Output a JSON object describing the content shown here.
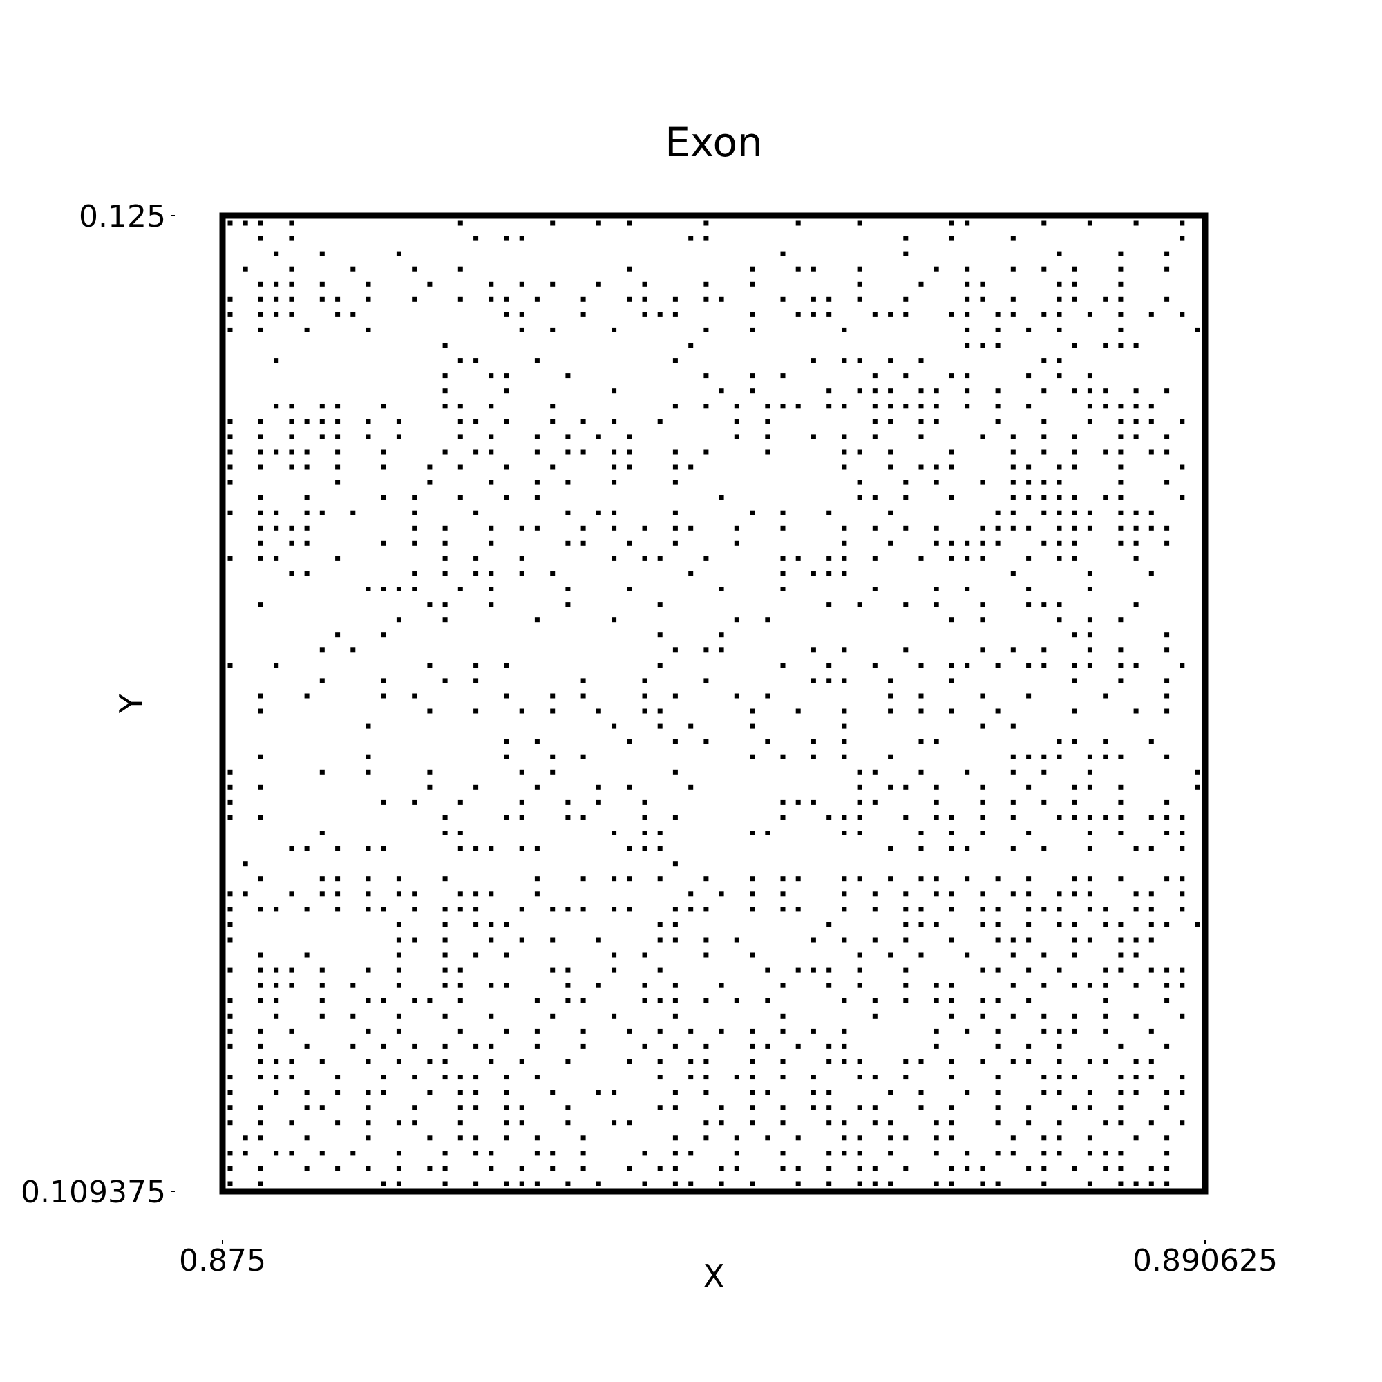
{
  "chart_data": {
    "type": "scatter",
    "title": "Exon",
    "xlabel": "X",
    "ylabel": "Y",
    "xlim": [
      0.875,
      0.890625
    ],
    "ylim": [
      0.109375,
      0.125
    ],
    "xticks": [
      {
        "value": 0.875,
        "label": "0.875"
      },
      {
        "value": 0.890625,
        "label": "0.890625"
      }
    ],
    "yticks": [
      {
        "value": 0.109375,
        "label": "0.109375"
      },
      {
        "value": 0.125,
        "label": "0.125"
      }
    ],
    "grid": false,
    "marker": "square",
    "point_color": "#000000",
    "frame_color": "#000000",
    "raster": {
      "columns": 64,
      "rows": 64,
      "row_order": "top-to-bottom",
      "cells": [
        "###.#..........#.....#..#.#....#.....#...#.....##....#..#..#..#",
        "..#.#...........#.##..........##............#..#...#..........#",
        "...#..#....#........................#.......#.........#...#..#.",
        ".#..#...#...#..#..........#.......#..##..#....#.#..#.#.#..#..#",
        "..###.#..#...#...#.#.#..#..#...#..#......#...#..##....##..#...",
        "#.###.##.#..#..#.##.#..#..##.#.##...#.##.#..#...##.#..##.##..#.",
        "#.###..##.........##...#...###....#..###..###..##.##.##.#.#.#.#",
        "#.#..#...#.........#.#...#.....#..#.....#.......#.#.#.#...#....#",
        "..............#...............#.................###....#.###...",
        "...#...........##...#........#........#.##.#.#.......##.........",
        "..............#..##...#........#..#.#.....#.#..##...#.#.#.......",
        "..............#...#......#......#.#....#.###.##.#.#..#.###.#.#..",
        "...##.##..#...##.#...#.......#.#.#.###.##.#####.#.#.#...#####",
        "#.#.####.#.#...##.#..#.#.#..#....#.#......##.##...#..#..#.###.#",
        "#.#.#.##.#.#...#.#..#.#.#.#......#.#..#.#.#..#...#.#.#.#..##.#",
        "#.####.#..#...#.##..#.##.##..#.#...#....##.#...#...#.#.#.##.##",
        "#.#.##.#..#..#.#..#..#...##..##.........#..#.###...##.##..#...#",
        "#......#.....#...#..#.#..#...#...........#..#.#..#.####...#..#",
        "..#..#....#.#..#..#.#...........#........##.#..#...#####.##...#",
        "#.##.##.#...#...#.....#.##...#....#.#..#...#......##.####.###",
        "..####......#.#..#.##..#.#.#.##..#..#...#.#.#.#..####.###.####",
        "..#.##....#.#.#..#....##..#..#...#......#..#..#####..###..##.#",
        "#.##...#......#.#..#.....#.##..#....##.##.#..#.###..#.##...#..",
        "....##......#.#.##.#.#........#.....#.###..........#....#...#..",
        ".........####..#.#....#...#.....#...#.....#...#.#...#...#.....",
        "..#..........##..#....#.....#..........#.#..#.#..#..###....#..",
        "...........#..#.....#....#.......#.#...........#.#....#.#.#..",
        ".......#..#.................#...#......................##....#",
        "......#.#....................#.##.....#.#...#....#.#.#..#.#..#",
        "#..#.........#..#.#.........#.......#..#..#..#.##.#.##.##.##..#",
        "......#...#...#.#......#...#...#......###..#...#.......#..#..#",
        "..#..#....#.#.....#..#.#...#.#...#.#.......#.#...#..#....#...#..",
        "..#..........#..#..#.#..#..##.....#..#..#..#.#.#..#....#...#.#..#",
        ".........#...............#..#.#...#.....#........#.#..........",
        "..................#.#.....#..#.#...#..#.#....##.......##.#..#..",
        "..#......#........#..#.#..........#.#.#.#..#.......####.###..#.",
        "#.....#..#...#.....#.#.......#...........##..#..#..#.#..#......#",
        "#.#..........#..#...#...#.#...#..........#.##.#..#..#..##.#....#",
        "#.........#.#..#...#..#.#..#........###..##...#..#.#.#.#..#..#.",
        "#.#...........#...##..##...#.#......#..###..#.##.#.#..#####.###",
        "......#.......##.........#.##.....##....##...#.#.#..#...#.#..##",
        "....##.#.##....###.##.....###..............#.#.##..#.#..#..##.#",
        ".#...........................#..................................",
        "..#...##.#.#..#.....#..#.##.#..#..#.##..##.#.##.#.#.#..##.#..##.",
        "##..#.##.#.##..###..#.........#.#.#.#...#.#.#.##.#.##.###..##.#..#",
        "#.##.#.#.##.#.###..#.###.##..###..#.##..#.#.##.#.##.###.##.##.#",
        "#..........#..#.###.........##.........#....###..##.#.##.##.##.#",
        "#..........##.#..#.#.#..#...##.#.#....#.#.#.#..#..###..##.###..",
        "..#..#.....#..#.#.#......#.#...#..#......#.#.#..#..#.#.#..##..",
        "#.###.#..#.#..##.....##..#..#......#.###.#..#....##.#.#..##.###",
        "..###.#.#..#..##.##...#.#..#.#..#...#..#.#..#.##...#.#.###.#.##",
        "#.##..#..##.##.#....#.##...###.#.#.#....#.#.#.##.##.#....#...#",
        "#..#..#.#..#..#..#...#...#...#......#.....#....#.#.#.#.#.#.#..#",
        "#.#.#....#.#...#..#.#..#..#.#.#.#.#.#.#.#.....#.#.#..###.#..#",
        "#.#..#..#.#.#.#.##..#..#...#.#.#..##.#.##.....#...#.#.#...#..#",
        "..###.#..#.#.##..#.#..#...#.#.##..#.#..###..##.#.#.##.#.##.##",
        "#.###..#..#.#.###.#.#.......#.##.##.#.#..##.#..#..#..###..###.#",
        "#..#.#.#.##..#.##.#..#..##...#.#..##..##...#.#..#.#..##.#.##.##",
        "#.#..##..#..#..##.##..#.....##..#.#.#.##.##..#.#..#.#..##.#..#",
        "#.#.#..#.#.##..#..##..#..##....##.#.#..##.##..##..#.#.#..##.#.#",
        ".##..#...#...#.##.#.#..#.....#.#.#.#.#..##.##.##...#.##.#..#.#",
        "##.##.#.#..#..#.##..##.#...#.##..#..#..###.#..#.#.##.##.###..#",
        "#.#..#.#.#.#.##..#.#.#.#..#.##..##..##.#.##.#..###..##.#.##.##.",
        "#.#.......##..#.#.###.#.#..#.##.#.#..#.#.###..##.##..#..#.####."
      ]
    }
  }
}
